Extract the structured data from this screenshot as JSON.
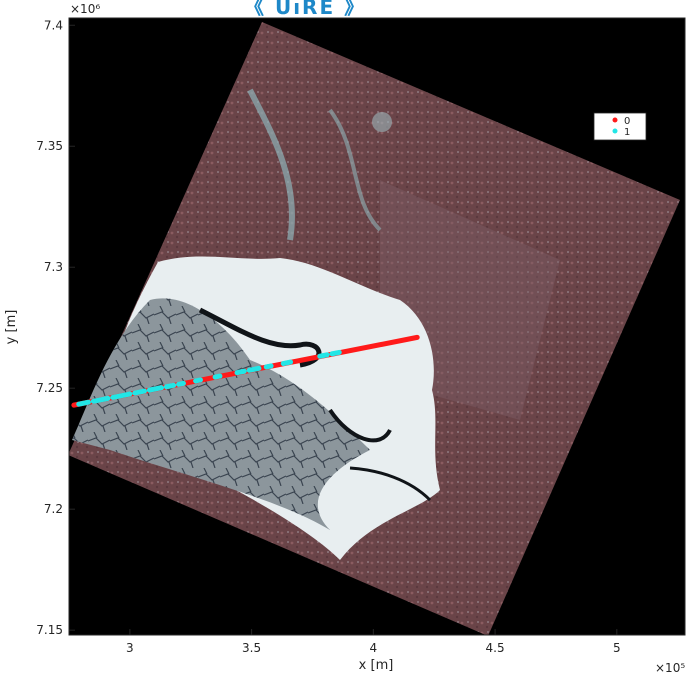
{
  "header": {
    "logo_text": "《 UıRE 》"
  },
  "chart_data": {
    "type": "scatter",
    "title": "",
    "xlabel": "x [m]",
    "ylabel": "y [m]",
    "x_exponent": "×10⁵",
    "y_exponent": "×10⁶",
    "xlim": [
      275000,
      528000
    ],
    "ylim": [
      7148000,
      7403000
    ],
    "x_ticks": [
      {
        "value": 300000,
        "label": "3"
      },
      {
        "value": 350000,
        "label": "3.5"
      },
      {
        "value": 400000,
        "label": "4"
      },
      {
        "value": 450000,
        "label": "4.5"
      },
      {
        "value": 500000,
        "label": "5"
      }
    ],
    "y_ticks": [
      {
        "value": 7150000,
        "label": "7.15"
      },
      {
        "value": 7200000,
        "label": "7.2"
      },
      {
        "value": 7250000,
        "label": "7.25"
      },
      {
        "value": 7300000,
        "label": "7.3"
      },
      {
        "value": 7350000,
        "label": "7.35"
      },
      {
        "value": 7400000,
        "label": "7.4"
      }
    ],
    "grid": false,
    "legend_position": "top-right",
    "background_image": "satellite image of sea ice and land (black outside swath)",
    "series": [
      {
        "name": "0",
        "color": "#ff1a1a",
        "segments": [
          [
            277000,
            7243000,
            418000,
            7271000
          ]
        ]
      },
      {
        "name": "1",
        "color": "#22e6e6",
        "segments": [
          [
            279000,
            7243400,
            283000,
            7244200
          ],
          [
            285000,
            7244600,
            291000,
            7245800
          ],
          [
            293000,
            7246200,
            300000,
            7247600
          ],
          [
            302000,
            7248000,
            306000,
            7248800
          ],
          [
            308000,
            7249200,
            313000,
            7250200
          ],
          [
            315000,
            7250600,
            318000,
            7251200
          ],
          [
            320000,
            7251600,
            322000,
            7252000
          ],
          [
            327000,
            7253000,
            329000,
            7253400
          ],
          [
            335000,
            7254600,
            337000,
            7255000
          ],
          [
            344000,
            7256400,
            347000,
            7257000
          ],
          [
            349000,
            7257400,
            353000,
            7258200
          ],
          [
            356000,
            7258800,
            358000,
            7259200
          ],
          [
            363000,
            7260200,
            366000,
            7260800
          ],
          [
            378000,
            7263200,
            381000,
            7263800
          ],
          [
            383000,
            7264200,
            386000,
            7264800
          ]
        ]
      }
    ]
  }
}
